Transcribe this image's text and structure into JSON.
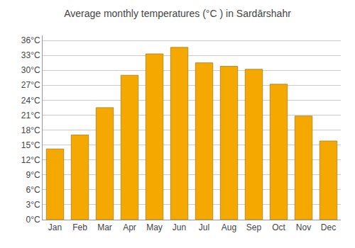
{
  "chart_data": {
    "type": "bar",
    "title": "Average monthly temperatures (°C ) in Sardārshahr",
    "categories": [
      "Jan",
      "Feb",
      "Mar",
      "Apr",
      "May",
      "Jun",
      "Jul",
      "Aug",
      "Sep",
      "Oct",
      "Nov",
      "Dec"
    ],
    "values": [
      14.2,
      17.0,
      22.5,
      29.0,
      33.3,
      34.6,
      31.5,
      30.8,
      30.2,
      27.2,
      20.8,
      15.8
    ],
    "color": "#F5A800",
    "ylim": [
      0,
      37
    ],
    "yticks": [
      {
        "value": 0,
        "label": "0°C"
      },
      {
        "value": 3,
        "label": "3°C"
      },
      {
        "value": 6,
        "label": "6°C"
      },
      {
        "value": 9,
        "label": "9°C"
      },
      {
        "value": 12,
        "label": "12°C"
      },
      {
        "value": 15,
        "label": "15°C"
      },
      {
        "value": 18,
        "label": "18°C"
      },
      {
        "value": 21,
        "label": "21°C"
      },
      {
        "value": 24,
        "label": "24°C"
      },
      {
        "value": 27,
        "label": "27°C"
      },
      {
        "value": 30,
        "label": "30°C"
      },
      {
        "value": 33,
        "label": "33°C"
      },
      {
        "value": 36,
        "label": "36°C"
      }
    ],
    "grid": true
  }
}
